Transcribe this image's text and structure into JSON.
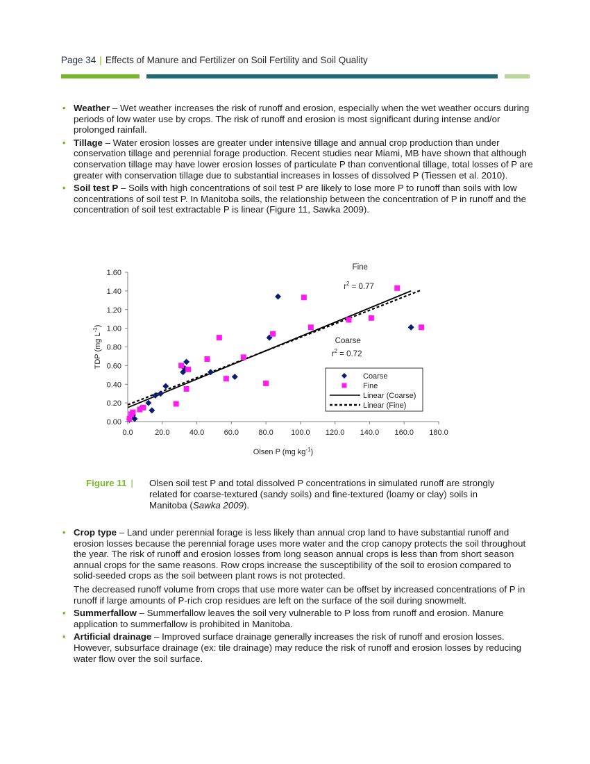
{
  "header": {
    "page": "Page 34",
    "separator": "|",
    "title": "Effects of Manure and Fertilizer on Soil Fertility and Soil Quality"
  },
  "colors": {
    "accent_green": "#77b82a",
    "teal": "#1f6b75",
    "light_green": "#b9d798",
    "coarse": "#0b1e6e",
    "fine": "#ff1cf0"
  },
  "bullets_top": [
    {
      "term": "Weather",
      "text": " – Wet weather increases the risk of runoff and erosion, especially when the wet weather occurs during periods of low water use by crops. The risk of runoff and erosion is most significant during intense and/or prolonged rainfall."
    },
    {
      "term": "Tillage",
      "text": " – Water erosion losses are greater under intensive tillage and annual crop production than under conservation tillage and perennial forage production. Recent studies near Miami, MB have shown that although conservation tillage may have lower erosion losses of particulate P than conventional tillage, total losses of P are greater with conservation tillage due to substantial increases in losses of dissolved P (Tiessen et al. 2010)."
    },
    {
      "term": "Soil test P",
      "text": " – Soils with high concentrations of soil test P are likely to lose more P to runoff than soils with low concentrations of soil test P. In Manitoba soils, the relationship between the concentration of P in runoff and the concentration of soil test extractable P is linear (Figure 11, Sawka 2009)."
    }
  ],
  "figure": {
    "label": "Figure 11",
    "separator": "|",
    "caption": "Olsen soil test P and total dissolved P concentrations in simulated runoff are strongly related for coarse-textured (sandy soils) and fine-textured (loamy or clay) soils in Manitoba (",
    "caption_cite": "Sawka 2009",
    "caption_end": ")."
  },
  "chart_data": {
    "type": "scatter",
    "xlabel_main": "Olsen P (mg kg",
    "xlabel_sup": "-1",
    "xlabel_end": ")",
    "ylabel_main": "TDP (mg L",
    "ylabel_sup": "-1",
    "ylabel_end": ")",
    "xlim": [
      0,
      180
    ],
    "ylim": [
      0,
      1.6
    ],
    "x_ticks": [
      "0.0",
      "20.0",
      "40.0",
      "60.0",
      "80.0",
      "100.0",
      "120.0",
      "140.0",
      "160.0",
      "180.0"
    ],
    "y_ticks": [
      "0.00",
      "0.20",
      "0.40",
      "0.60",
      "0.80",
      "1.00",
      "1.20",
      "1.40",
      "1.60"
    ],
    "annotations": [
      {
        "text": "Fine",
        "x": 130,
        "y": 1.63
      },
      {
        "text": "r",
        "sup": "2",
        "rest": " = 0.77",
        "x": 125,
        "y": 1.42
      },
      {
        "text": "Coarse",
        "x": 120,
        "y": 0.84
      },
      {
        "text": "r",
        "sup": "2",
        "rest": " = 0.72",
        "x": 118,
        "y": 0.7
      }
    ],
    "series": [
      {
        "name": "Coarse",
        "marker": "diamond",
        "points": [
          [
            1,
            0.02
          ],
          [
            2,
            0.05
          ],
          [
            3,
            0.07
          ],
          [
            4,
            0.03
          ],
          [
            8,
            0.15
          ],
          [
            12,
            0.2
          ],
          [
            14,
            0.12
          ],
          [
            16,
            0.28
          ],
          [
            19,
            0.3
          ],
          [
            22,
            0.38
          ],
          [
            32,
            0.53
          ],
          [
            33,
            0.57
          ],
          [
            34,
            0.64
          ],
          [
            48,
            0.53
          ],
          [
            62,
            0.48
          ],
          [
            82,
            0.9
          ],
          [
            87,
            1.34
          ],
          [
            164,
            1.01
          ]
        ]
      },
      {
        "name": "Fine",
        "marker": "square",
        "points": [
          [
            1,
            0.03
          ],
          [
            2,
            0.08
          ],
          [
            3,
            0.1
          ],
          [
            7,
            0.13
          ],
          [
            9,
            0.15
          ],
          [
            28,
            0.19
          ],
          [
            31,
            0.6
          ],
          [
            34,
            0.35
          ],
          [
            35,
            0.56
          ],
          [
            46,
            0.67
          ],
          [
            53,
            0.9
          ],
          [
            57,
            0.46
          ],
          [
            67,
            0.69
          ],
          [
            80,
            0.41
          ],
          [
            84,
            0.94
          ],
          [
            102,
            1.33
          ],
          [
            106,
            1.01
          ],
          [
            128,
            1.09
          ],
          [
            141,
            1.11
          ],
          [
            156,
            1.43
          ],
          [
            170,
            1.01
          ]
        ]
      }
    ],
    "trendlines": [
      {
        "name": "Linear (Coarse)",
        "style": "solid",
        "x": [
          0,
          164
        ],
        "y": [
          0.15,
          1.4
        ]
      },
      {
        "name": "Linear (Fine)",
        "style": "dashed",
        "x": [
          0,
          170
        ],
        "y": [
          0.18,
          1.41
        ]
      }
    ],
    "legend": [
      "Coarse",
      "Fine",
      "Linear (Coarse)",
      "Linear (Fine)"
    ],
    "legend_position": "bottom-right",
    "grid": false
  },
  "bullets_bottom": [
    {
      "term": "Crop type",
      "text": " – Land under perennial forage is less likely than annual crop land to have substantial runoff and erosion losses because the perennial forage uses more water and the crop canopy protects the soil throughout the year. The risk of runoff and erosion losses from long season annual crops is less than from short season annual crops for the same reasons. Row crops increase the susceptibility of the soil to erosion compared to solid-seeded crops as the soil between plant rows is not protected.",
      "extra": "The decreased runoff volume from crops that use more water can be offset by increased concentrations of P in runoff if large amounts of P-rich crop residues are left on the surface of the soil during snowmelt."
    },
    {
      "term": "Summerfallow",
      "text": " – Summerfallow leaves the soil very vulnerable to P loss from runoff and erosion. Manure application to summerfallow is prohibited in Manitoba."
    },
    {
      "term": "Artificial drainage",
      "text": " – Improved surface drainage generally increases the risk of runoff and erosion losses. However, subsurface drainage (ex: tile drainage) may reduce the risk of runoff and erosion losses by reducing water flow over the soil surface."
    }
  ]
}
